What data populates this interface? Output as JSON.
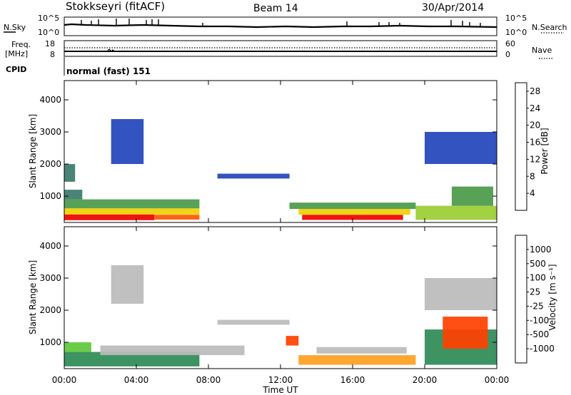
{
  "header": {
    "radar": "Stokkseyri (fitACF)",
    "beam": "Beam 14",
    "date": "30/Apr/2014"
  },
  "top_panels": {
    "nsky_label": "N.Sky",
    "nsky_ticks": [
      "10^5",
      "10^0"
    ],
    "nsearch_label": "N.Search",
    "nsearch_ticks": [
      "10^5",
      "10^0"
    ],
    "freq_label_1": "Freq.",
    "freq_label_2": "[MHz]",
    "freq_ticks": [
      "18",
      "8"
    ],
    "nave_label": "Nave",
    "nave_ticks": [
      "60",
      "0"
    ],
    "cpid_label": "CPID",
    "cpid_value": "normal (fast) 151"
  },
  "colors": {
    "power": [
      "#1a1aff",
      "#2244bb",
      "#3a7a6a",
      "#4a9a4a",
      "#9acd32",
      "#f0d000",
      "#ff9000",
      "#ff5500",
      "#ee0000"
    ],
    "velocity": [
      "#1f3fcc",
      "#2a6a9a",
      "#2e8a55",
      "#5ec83a",
      "#bbbbbb",
      "#ffa020",
      "#ff7a10",
      "#ff4000",
      "#ee0000"
    ]
  },
  "chart_data": [
    {
      "type": "heatmap",
      "name": "power",
      "ylabel": "Slant Range [km]",
      "yticks": [
        "1000",
        "2000",
        "3000",
        "4000"
      ],
      "ylim": [
        180,
        4600
      ],
      "xticks": [
        "00:00",
        "04:00",
        "08:00",
        "12:00",
        "16:00",
        "20:00",
        "00:00"
      ],
      "xlim": [
        0,
        24
      ],
      "colorbar": {
        "label": "Power [dB]",
        "ticks": [
          "4",
          "8",
          "12",
          "16",
          "20",
          "24",
          "28"
        ],
        "range": [
          0,
          30
        ]
      },
      "regions": [
        {
          "t": [
            0.0,
            5.0
          ],
          "r": [
            250,
            430
          ],
          "level": 8
        },
        {
          "t": [
            5.0,
            7.5
          ],
          "r": [
            270,
            420
          ],
          "level": 7
        },
        {
          "t": [
            0.0,
            7.5
          ],
          "r": [
            430,
            620
          ],
          "level": 5
        },
        {
          "t": [
            0.0,
            7.5
          ],
          "r": [
            620,
            900
          ],
          "level": 3
        },
        {
          "t": [
            0.0,
            1.0
          ],
          "r": [
            900,
            1200
          ],
          "level": 2
        },
        {
          "t": [
            0.0,
            0.6
          ],
          "r": [
            1450,
            2000
          ],
          "level": 2
        },
        {
          "t": [
            2.6,
            4.4
          ],
          "r": [
            2000,
            3400
          ],
          "level": 1
        },
        {
          "t": [
            13.2,
            18.8
          ],
          "r": [
            260,
            420
          ],
          "level": 8
        },
        {
          "t": [
            13.0,
            19.2
          ],
          "r": [
            420,
            600
          ],
          "level": 5
        },
        {
          "t": [
            12.5,
            19.5
          ],
          "r": [
            600,
            800
          ],
          "level": 3
        },
        {
          "t": [
            19.5,
            24.0
          ],
          "r": [
            260,
            700
          ],
          "level": 4
        },
        {
          "t": [
            21.5,
            23.8
          ],
          "r": [
            700,
            1300
          ],
          "level": 3
        },
        {
          "t": [
            8.5,
            12.5
          ],
          "r": [
            1550,
            1700
          ],
          "level": 1
        },
        {
          "t": [
            20.0,
            24.0
          ],
          "r": [
            2000,
            3000
          ],
          "level": 1
        }
      ]
    },
    {
      "type": "heatmap",
      "name": "velocity",
      "xlabel": "Time UT",
      "ylabel": "Slant Range [km]",
      "yticks": [
        "1000",
        "2000",
        "3000",
        "4000"
      ],
      "ylim": [
        180,
        4600
      ],
      "xticks": [
        "00:00",
        "04:00",
        "08:00",
        "12:00",
        "16:00",
        "20:00",
        "00:00"
      ],
      "xlim": [
        0,
        24
      ],
      "colorbar": {
        "label": "Velocity [m s⁻¹]",
        "ticks": [
          "1000",
          "500",
          "100",
          "25",
          "-25",
          "-100",
          "-500",
          "-1000"
        ]
      },
      "regions": [
        {
          "t": [
            0.0,
            7.5
          ],
          "r": [
            250,
            700
          ],
          "level": 2
        },
        {
          "t": [
            2.0,
            10.0
          ],
          "r": [
            600,
            900
          ],
          "level": 4
        },
        {
          "t": [
            0.0,
            1.5
          ],
          "r": [
            700,
            1000
          ],
          "level": 3
        },
        {
          "t": [
            2.6,
            4.4
          ],
          "r": [
            2200,
            3400
          ],
          "level": 4
        },
        {
          "t": [
            13.0,
            19.5
          ],
          "r": [
            300,
            600
          ],
          "level": 5
        },
        {
          "t": [
            14.0,
            19.0
          ],
          "r": [
            650,
            850
          ],
          "level": 4
        },
        {
          "t": [
            12.3,
            13.0
          ],
          "r": [
            900,
            1200
          ],
          "level": 7
        },
        {
          "t": [
            20.0,
            24.0
          ],
          "r": [
            300,
            1400
          ],
          "level": 2
        },
        {
          "t": [
            21.0,
            23.5
          ],
          "r": [
            800,
            1800
          ],
          "level": 7
        },
        {
          "t": [
            20.0,
            24.0
          ],
          "r": [
            2000,
            3000
          ],
          "level": 4
        },
        {
          "t": [
            8.5,
            12.5
          ],
          "r": [
            1550,
            1700
          ],
          "level": 4
        }
      ]
    }
  ]
}
